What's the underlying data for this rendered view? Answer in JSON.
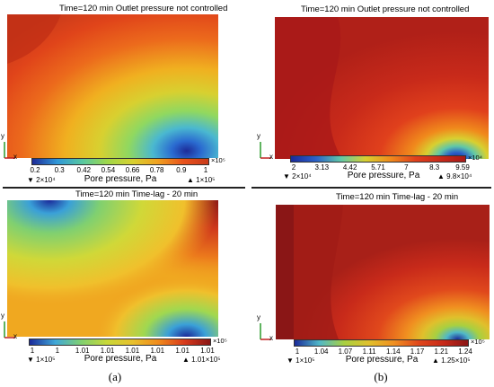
{
  "panels": [
    {
      "id": "a-top",
      "title": "Time=120 min   Outlet pressure not controlled",
      "ticks": [
        "0.2",
        "0.3",
        "0.42",
        "0.54",
        "0.66",
        "0.78",
        "0.9",
        "1"
      ],
      "multiplier": "×10⁵",
      "cbar_label": "Pore pressure, Pa",
      "min_label": "▼ 2×10⁴",
      "max_label": "▲ 1×10⁵",
      "colors": [
        "#c83a1a",
        "#e8521c",
        "#f0a020",
        "#d8d030",
        "#a0d848",
        "#58c8a0",
        "#3098d8",
        "#1d2b98"
      ]
    },
    {
      "id": "a-bottom",
      "title": "Time=120 min   Time-lag - 20 min",
      "ticks": [
        "1",
        "1",
        "1.01",
        "1.01",
        "1.01",
        "1.01",
        "1.01",
        "1.01"
      ],
      "multiplier": "×10⁵",
      "cbar_label": "Pore pressure, Pa",
      "min_label": "▼ 1×10⁵",
      "max_label": "▲ 1.01×10⁵",
      "colors": [
        "#8a1616",
        "#d83a1c",
        "#f08a1c",
        "#e8c02c",
        "#c8d838",
        "#80d070",
        "#40a8d8",
        "#1a2a9a"
      ]
    },
    {
      "id": "b-top",
      "title": "Time=120 min   Outlet pressure not controlled",
      "ticks": [
        "2",
        "3.13",
        "4.42",
        "5.71",
        "7",
        "8.3",
        "9.59"
      ],
      "multiplier": "×10⁴",
      "cbar_label": "Pore pressure, Pa",
      "min_label": "▼ 2×10⁴",
      "max_label": "▲ 9.8×10⁴",
      "colors": [
        "#a81818",
        "#c82a1a",
        "#e0401c",
        "#f08a1c",
        "#d8d030",
        "#60c8a8",
        "#2a60c8",
        "#1a2a9a"
      ]
    },
    {
      "id": "b-bottom",
      "title": "Time=120 min   Time-lag - 20 min",
      "ticks": [
        "1",
        "1.04",
        "1.07",
        "1.11",
        "1.14",
        "1.17",
        "1.21",
        "1.24"
      ],
      "multiplier": "×10⁵",
      "cbar_label": "Pore pressure, Pa",
      "min_label": "▼ 1×10⁵",
      "max_label": "▲ 1.25×10⁵",
      "colors": [
        "#8a1616",
        "#c82a1a",
        "#e0481c",
        "#f09020",
        "#e0c02c",
        "#a8d040",
        "#50b8c8",
        "#1a2a9a"
      ]
    }
  ],
  "axes": {
    "x": "x",
    "y": "y"
  },
  "captions": {
    "a": "(a)",
    "b": "(b)"
  }
}
